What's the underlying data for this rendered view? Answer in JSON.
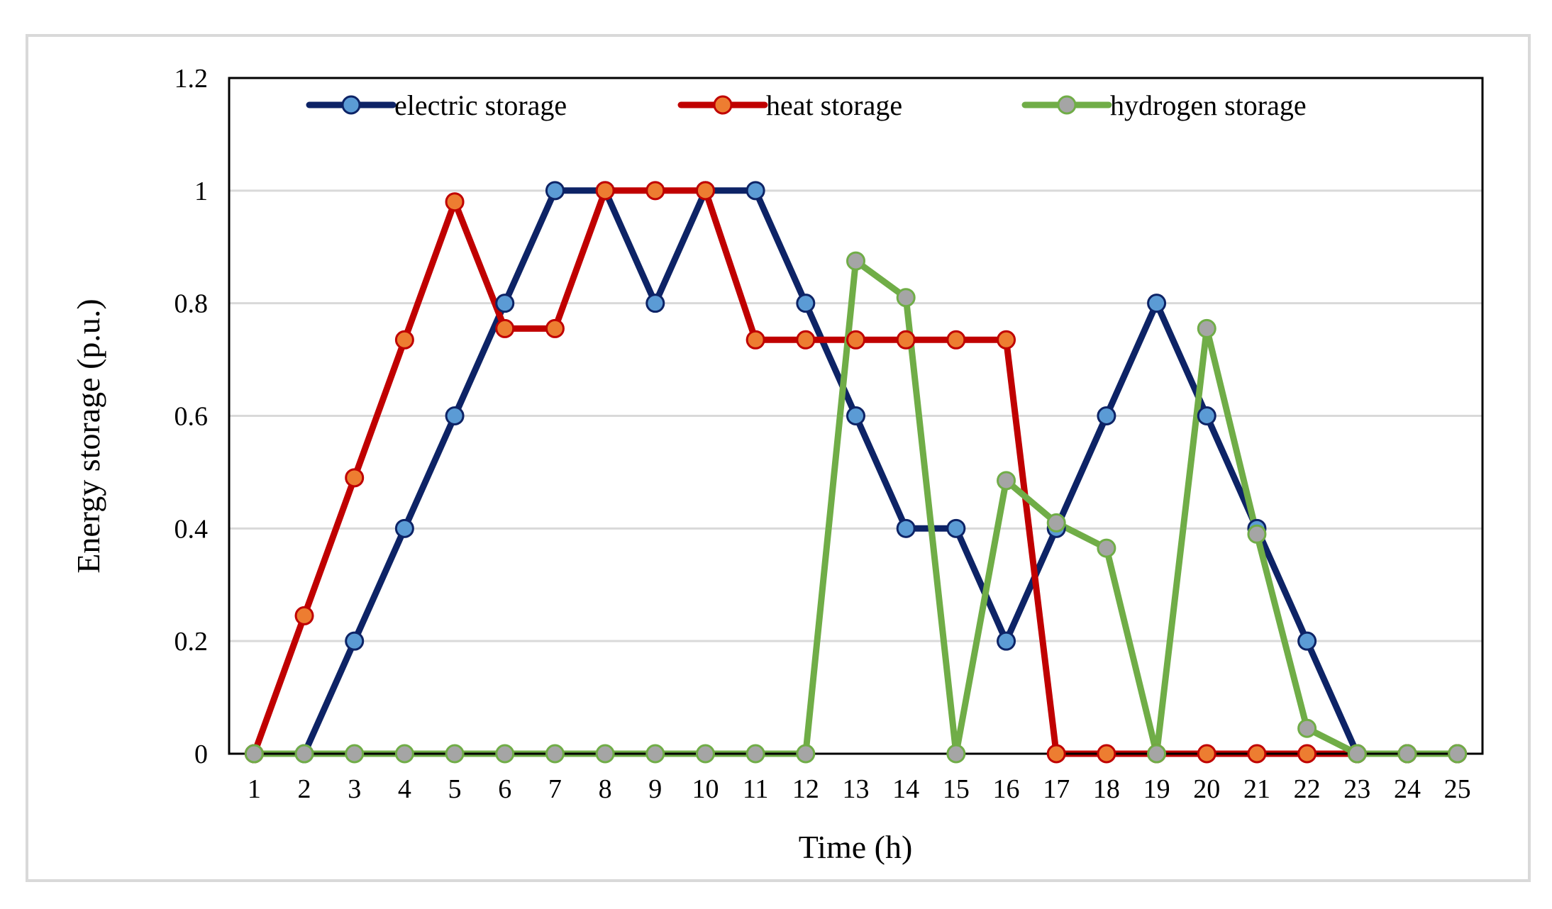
{
  "chart_data": {
    "type": "line",
    "title": "",
    "xlabel": "Time (h)",
    "ylabel": "Energy storage (p.u.)",
    "x": [
      1,
      2,
      3,
      4,
      5,
      6,
      7,
      8,
      9,
      10,
      11,
      12,
      13,
      14,
      15,
      16,
      17,
      18,
      19,
      20,
      21,
      22,
      23,
      24,
      25
    ],
    "x_tick_labels": [
      "1",
      "2",
      "3",
      "4",
      "5",
      "6",
      "7",
      "8",
      "9",
      "10",
      "11",
      "12",
      "13",
      "14",
      "15",
      "16",
      "17",
      "18",
      "19",
      "20",
      "21",
      "22",
      "23",
      "24",
      "25"
    ],
    "xlim": [
      0.5,
      25.5
    ],
    "ylim": [
      0,
      1.2
    ],
    "y_ticks": [
      0,
      0.2,
      0.4,
      0.6,
      0.8,
      1,
      1.2
    ],
    "y_tick_labels": [
      "0",
      "0.2",
      "0.4",
      "0.6",
      "0.8",
      "1",
      "1.2"
    ],
    "grid": true,
    "legend_position": "top",
    "series": [
      {
        "name": "electric storage",
        "line_color": "#0d2366",
        "marker_fill": "#5b9bd5",
        "marker_stroke": "#0d2366",
        "values": [
          0,
          0,
          0.2,
          0.4,
          0.6,
          0.8,
          1,
          1,
          0.8,
          1,
          1,
          0.8,
          0.6,
          0.4,
          0.4,
          0.2,
          0.4,
          0.6,
          0.8,
          0.6,
          0.4,
          0.2,
          0,
          0,
          0
        ]
      },
      {
        "name": "heat storage",
        "line_color": "#c00000",
        "marker_fill": "#ed7d31",
        "marker_stroke": "#c00000",
        "values": [
          0,
          0.245,
          0.49,
          0.735,
          0.98,
          0.755,
          0.755,
          1,
          1,
          1,
          0.735,
          0.735,
          0.735,
          0.735,
          0.735,
          0.735,
          0,
          0,
          0,
          0,
          0,
          0,
          0,
          0,
          0
        ]
      },
      {
        "name": "hydrogen storage",
        "line_color": "#70ad47",
        "marker_fill": "#a5a5a5",
        "marker_stroke": "#70ad47",
        "values": [
          0,
          0,
          0,
          0,
          0,
          0,
          0,
          0,
          0,
          0,
          0,
          0,
          0.875,
          0.81,
          0,
          0.485,
          0.41,
          0.365,
          0,
          0.755,
          0.39,
          0.045,
          0,
          0,
          0
        ]
      }
    ],
    "colors": {
      "grid": "#d9d9d9",
      "axis": "#000000",
      "frame": "#d9d9d9"
    }
  }
}
